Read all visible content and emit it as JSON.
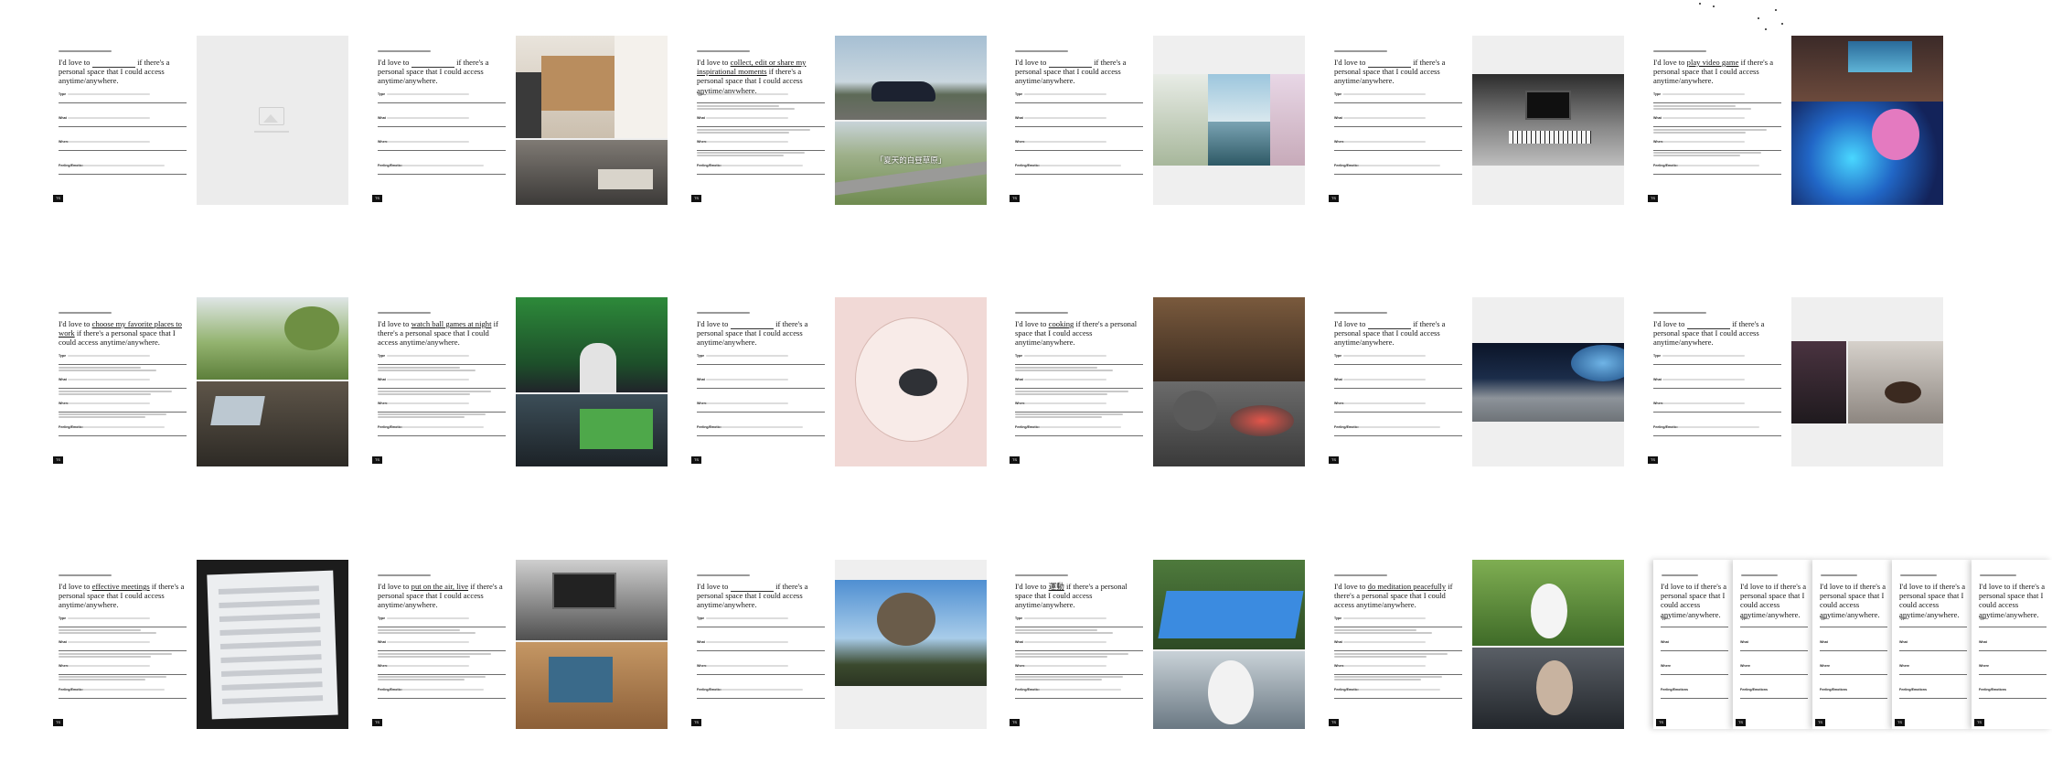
{
  "headline_prefix": "I'd love to",
  "headline_suffix": "if there's a personal space that I could access anytime/anywhere.",
  "field_labels": {
    "type": "Type",
    "what": "What",
    "where": "Where",
    "feeling": "Feeling/Emotions"
  },
  "cards": [
    {
      "id": "r1c1",
      "fill": "",
      "image": "placeholder"
    },
    {
      "id": "r1c2",
      "fill": "",
      "image": "loft-interior"
    },
    {
      "id": "r1c3",
      "fill": "collect, edit or share my inspirational moments",
      "image": "car-roadtrip",
      "image_caption": "「夏天的白昼草原」"
    },
    {
      "id": "r1c4",
      "fill": "",
      "image": "yoga-collage"
    },
    {
      "id": "r1c5",
      "fill": "",
      "image": "music-studio"
    },
    {
      "id": "r1c6",
      "fill": "play video game",
      "image": "gaming-setup"
    },
    {
      "id": "r2c1",
      "fill": "choose my favorite places to work",
      "image": "park-car-office"
    },
    {
      "id": "r2c2",
      "fill": "watch ball games at night",
      "image": "sports-fans"
    },
    {
      "id": "r2c3",
      "fill": "",
      "image": "pink-illustration"
    },
    {
      "id": "r2c4",
      "fill": "cooking",
      "image": "outdoor-cooking"
    },
    {
      "id": "r2c5",
      "fill": "",
      "image": "moon-earth"
    },
    {
      "id": "r2c6",
      "fill": "",
      "image": "guitar-players"
    },
    {
      "id": "r3c1",
      "fill": "effective meetings",
      "image": "tablet-screen"
    },
    {
      "id": "r3c2",
      "fill": "put on the air, live",
      "image": "creator-desk"
    },
    {
      "id": "r3c3",
      "fill": "",
      "image": "flying-castle"
    },
    {
      "id": "r3c4",
      "fill": "運動",
      "image": "martial-arts"
    },
    {
      "id": "r3c5",
      "fill": "do meditation peacefully",
      "image": "meditation"
    }
  ],
  "page_badge": "TS",
  "colors": {
    "background": "#ffffff",
    "image_placeholder": "#eeeeee",
    "rule": "#6d6d6d",
    "badge": "#111111"
  }
}
